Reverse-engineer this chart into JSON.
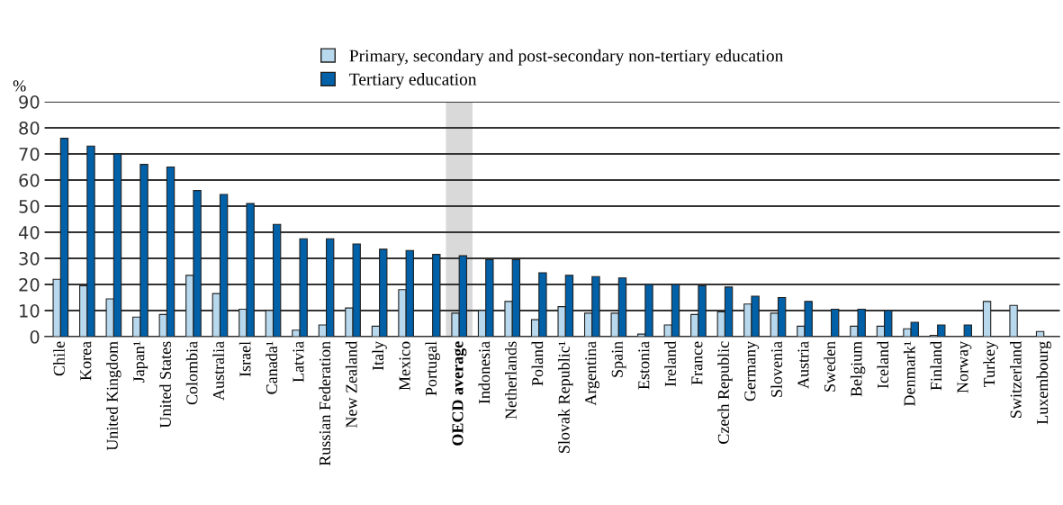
{
  "chart_data": {
    "type": "bar",
    "ylabel": "%",
    "categories": [
      "Chile",
      "Korea",
      "United Kingdom",
      "Japan¹",
      "United States",
      "Colombia",
      "Australia",
      "Israel",
      "Canada¹",
      "Latvia",
      "Russian Federation",
      "New Zealand",
      "Italy",
      "Mexico",
      "Portugal",
      "OECD average",
      "Indonesia",
      "Netherlands",
      "Poland",
      "Slovak Republic¹",
      "Argentina",
      "Spain",
      "Estonia",
      "Ireland",
      "France",
      "Czech Republic",
      "Germany",
      "Slovenia",
      "Austria",
      "Sweden",
      "Belgium",
      "Iceland",
      "Denmark¹",
      "Finland",
      "Norway",
      "Turkey",
      "Switzerland",
      "Luxembourg"
    ],
    "series": [
      {
        "name": "Primary, secondary and post-secondary non-tertiary education",
        "color": "#b8d8ee",
        "values": [
          22,
          19.5,
          14.5,
          7.5,
          8.5,
          23.5,
          16.5,
          10.5,
          10,
          2.5,
          4.5,
          11,
          4,
          18,
          null,
          9,
          10,
          13.5,
          6.5,
          11.5,
          9,
          9,
          1,
          4.5,
          8.5,
          9.5,
          12.5,
          9,
          4,
          null,
          4,
          4,
          3,
          0.5,
          null,
          13.5,
          12,
          2
        ]
      },
      {
        "name": "Tertiary education",
        "color": "#0060a8",
        "values": [
          76,
          73,
          70,
          66,
          65,
          56,
          54.5,
          51,
          43,
          37.5,
          37.5,
          35.5,
          33.5,
          33,
          31.5,
          31,
          29.5,
          29.5,
          24.5,
          23.5,
          23,
          22.5,
          20,
          20,
          19.5,
          19,
          15.5,
          15,
          13.5,
          10.5,
          10.5,
          10,
          5.5,
          4.5,
          4.5,
          null,
          null,
          null
        ]
      }
    ],
    "ylim": [
      0,
      90
    ],
    "yticks": [
      0,
      10,
      20,
      30,
      40,
      50,
      60,
      70,
      80,
      90
    ],
    "grid": "y",
    "legend": "top",
    "bands": [
      {
        "axis": "x",
        "from": "OECD average",
        "to": "OECD average",
        "color": "#d9d9d9"
      }
    ]
  }
}
